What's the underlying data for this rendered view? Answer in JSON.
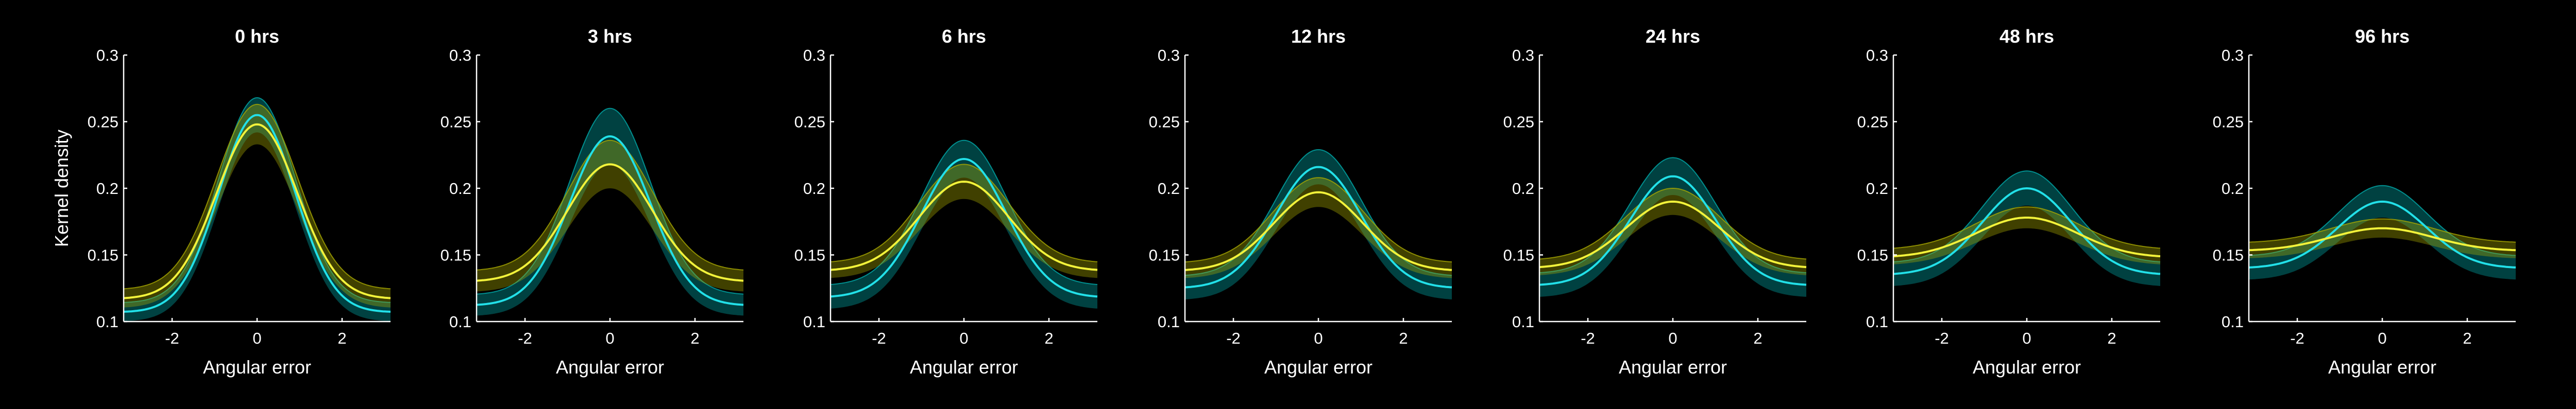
{
  "figure": {
    "background": "#000000",
    "colors": {
      "cyan_line": "#22e0e8",
      "cyan_band": "#00aaaa",
      "yellow_line": "#f2f23a",
      "yellow_band": "#a8a800",
      "axes": "#ffffff"
    }
  },
  "chart_data": [
    {
      "type": "line",
      "title": "0 hrs",
      "xlabel": "Angular error",
      "ylabel": "Kernel density",
      "xlim": [
        -3.14,
        3.14
      ],
      "ylim": [
        0.1,
        0.3
      ],
      "xticks": [
        "-2",
        "0",
        "2"
      ],
      "yticks": [
        "0.1",
        "0.15",
        "0.2",
        "0.25",
        "0.3"
      ],
      "grid": false,
      "series": [
        {
          "color": "cyan",
          "center": 0,
          "edge": 0.107,
          "peak": 0.255,
          "width": 0.9,
          "band": 0.013,
          "band_edge": 0.007
        },
        {
          "color": "yellow",
          "center": 0,
          "edge": 0.117,
          "peak": 0.248,
          "width": 0.95,
          "band": 0.015,
          "band_edge": 0.007
        }
      ]
    },
    {
      "type": "line",
      "title": "3 hrs",
      "xlabel": "Angular error",
      "ylabel": "",
      "xlim": [
        -3.14,
        3.14
      ],
      "ylim": [
        0.1,
        0.3
      ],
      "xticks": [
        "-2",
        "0",
        "2"
      ],
      "yticks": [
        "0.1",
        "0.15",
        "0.2",
        "0.25",
        "0.3"
      ],
      "grid": false,
      "series": [
        {
          "color": "cyan",
          "center": 0,
          "edge": 0.112,
          "peak": 0.239,
          "width": 0.95,
          "band": 0.021,
          "band_edge": 0.008
        },
        {
          "color": "yellow",
          "center": 0,
          "edge": 0.13,
          "peak": 0.218,
          "width": 1.0,
          "band": 0.018,
          "band_edge": 0.008
        }
      ]
    },
    {
      "type": "line",
      "title": "6 hrs",
      "xlabel": "Angular error",
      "ylabel": "",
      "xlim": [
        -3.14,
        3.14
      ],
      "ylim": [
        0.1,
        0.3
      ],
      "xticks": [
        "-2",
        "0",
        "2"
      ],
      "yticks": [
        "0.1",
        "0.15",
        "0.2",
        "0.25",
        "0.3"
      ],
      "grid": false,
      "series": [
        {
          "color": "cyan",
          "center": 0,
          "edge": 0.118,
          "peak": 0.222,
          "width": 1.0,
          "band": 0.014,
          "band_edge": 0.009
        },
        {
          "color": "yellow",
          "center": 0,
          "edge": 0.138,
          "peak": 0.205,
          "width": 1.05,
          "band": 0.013,
          "band_edge": 0.006
        }
      ]
    },
    {
      "type": "line",
      "title": "12 hrs",
      "xlabel": "Angular error",
      "ylabel": "",
      "xlim": [
        -3.14,
        3.14
      ],
      "ylim": [
        0.1,
        0.3
      ],
      "xticks": [
        "-2",
        "0",
        "2"
      ],
      "yticks": [
        "0.1",
        "0.15",
        "0.2",
        "0.25",
        "0.3"
      ],
      "grid": false,
      "series": [
        {
          "color": "cyan",
          "center": 0,
          "edge": 0.125,
          "peak": 0.216,
          "width": 1.0,
          "band": 0.013,
          "band_edge": 0.009
        },
        {
          "color": "yellow",
          "center": 0,
          "edge": 0.138,
          "peak": 0.197,
          "width": 1.05,
          "band": 0.011,
          "band_edge": 0.006
        }
      ]
    },
    {
      "type": "line",
      "title": "24 hrs",
      "xlabel": "Angular error",
      "ylabel": "",
      "xlim": [
        -3.14,
        3.14
      ],
      "ylim": [
        0.1,
        0.3
      ],
      "xticks": [
        "-2",
        "0",
        "2"
      ],
      "yticks": [
        "0.1",
        "0.15",
        "0.2",
        "0.25",
        "0.3"
      ],
      "grid": false,
      "series": [
        {
          "color": "cyan",
          "center": 0,
          "edge": 0.127,
          "peak": 0.209,
          "width": 1.0,
          "band": 0.014,
          "band_edge": 0.009
        },
        {
          "color": "yellow",
          "center": 0,
          "edge": 0.14,
          "peak": 0.19,
          "width": 1.1,
          "band": 0.01,
          "band_edge": 0.006
        }
      ]
    },
    {
      "type": "line",
      "title": "48 hrs",
      "xlabel": "Angular error",
      "ylabel": "",
      "xlim": [
        -3.14,
        3.14
      ],
      "ylim": [
        0.1,
        0.3
      ],
      "xticks": [
        "-2",
        "0",
        "2"
      ],
      "yticks": [
        "0.1",
        "0.15",
        "0.2",
        "0.25",
        "0.3"
      ],
      "grid": false,
      "series": [
        {
          "color": "cyan",
          "center": 0,
          "edge": 0.135,
          "peak": 0.2,
          "width": 1.05,
          "band": 0.013,
          "band_edge": 0.009
        },
        {
          "color": "yellow",
          "center": 0,
          "edge": 0.148,
          "peak": 0.178,
          "width": 1.2,
          "band": 0.008,
          "band_edge": 0.006
        }
      ]
    },
    {
      "type": "line",
      "title": "96 hrs",
      "xlabel": "Angular error",
      "ylabel": "",
      "xlim": [
        -3.14,
        3.14
      ],
      "ylim": [
        0.1,
        0.3
      ],
      "xticks": [
        "-2",
        "0",
        "2"
      ],
      "yticks": [
        "0.1",
        "0.15",
        "0.2",
        "0.25",
        "0.3"
      ],
      "grid": false,
      "series": [
        {
          "color": "cyan",
          "center": 0,
          "edge": 0.14,
          "peak": 0.19,
          "width": 1.05,
          "band": 0.012,
          "band_edge": 0.009
        },
        {
          "color": "yellow",
          "center": 0,
          "edge": 0.153,
          "peak": 0.17,
          "width": 1.2,
          "band": 0.007,
          "band_edge": 0.006
        }
      ]
    }
  ]
}
